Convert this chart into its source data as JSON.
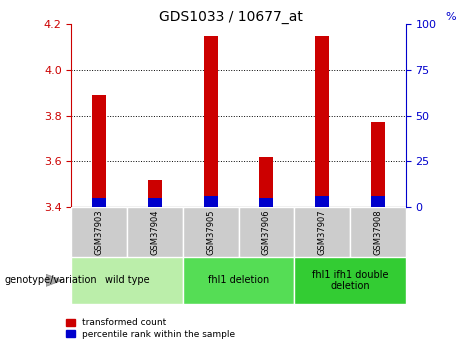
{
  "title": "GDS1033 / 10677_at",
  "samples": [
    "GSM37903",
    "GSM37904",
    "GSM37905",
    "GSM37906",
    "GSM37907",
    "GSM37908"
  ],
  "red_values": [
    3.89,
    3.52,
    4.15,
    3.62,
    4.15,
    3.77
  ],
  "blue_values": [
    0.04,
    0.04,
    0.05,
    0.04,
    0.05,
    0.05
  ],
  "ylim_left": [
    3.4,
    4.2
  ],
  "ylim_right": [
    0,
    100
  ],
  "yticks_left": [
    3.4,
    3.6,
    3.8,
    4.0,
    4.2
  ],
  "yticks_right": [
    0,
    25,
    50,
    75,
    100
  ],
  "bar_bottom": 3.4,
  "left_axis_color": "#cc0000",
  "right_axis_color": "#0000cc",
  "bar_width": 0.25,
  "title_fontsize": 10,
  "tick_fontsize": 8,
  "sample_label_bg": "#cccccc",
  "group_colors": [
    "#bbeeaa",
    "#55dd55",
    "#33cc33"
  ],
  "group_info": [
    {
      "start": 0,
      "end": 1,
      "label": "wild type"
    },
    {
      "start": 2,
      "end": 3,
      "label": "fhl1 deletion"
    },
    {
      "start": 4,
      "end": 5,
      "label": "fhl1 ifh1 double\ndeletion"
    }
  ],
  "legend_red_label": "transformed count",
  "legend_blue_label": "percentile rank within the sample",
  "genotype_label": "genotype/variation"
}
